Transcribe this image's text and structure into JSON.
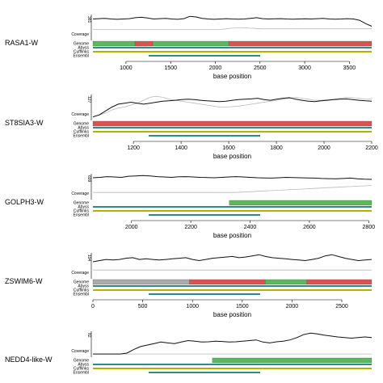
{
  "chart_data": [
    {
      "type": "line",
      "gene": "RASA1-W",
      "ymax_label": "381",
      "ylabel": "Coverage",
      "xlabel": "base position",
      "xlim": [
        630,
        3750
      ],
      "xticks": [
        1000,
        1500,
        2000,
        2500,
        3000,
        3500
      ],
      "coverage": [
        300,
        305,
        310,
        300,
        295,
        300,
        305,
        320,
        325,
        315,
        300,
        305,
        310,
        300,
        295,
        305,
        340,
        330,
        310,
        300,
        295,
        300,
        305,
        300,
        298,
        300,
        310,
        320,
        305,
        300,
        302,
        305,
        300,
        298,
        300,
        302,
        300,
        305,
        310,
        300,
        298,
        300,
        305,
        300,
        280,
        230,
        190
      ],
      "secondary": [
        140,
        140,
        140,
        140,
        140,
        140,
        140,
        140,
        140,
        140,
        140,
        140,
        140,
        140,
        140,
        140,
        140,
        140,
        140,
        140,
        140,
        140,
        150,
        160,
        170,
        165,
        160,
        155,
        150,
        150,
        150,
        150,
        150,
        150,
        150,
        150,
        150,
        150,
        150,
        150,
        150,
        150,
        150,
        150,
        150,
        150,
        150
      ],
      "tracks": [
        {
          "label": "Genome",
          "type": "green",
          "start": 630,
          "end": 1100
        },
        {
          "label": "Genome",
          "type": "red",
          "start": 1100,
          "end": 1300
        },
        {
          "label": "Genome",
          "type": "green",
          "start": 1300,
          "end": 2150
        },
        {
          "label": "Genome",
          "type": "red",
          "start": 2150,
          "end": 3750
        }
      ],
      "annotation_rows": [
        "Genome",
        "Abyss",
        "Cufflinks",
        "Ensembl"
      ],
      "colors": {
        "green": "#5cb85c",
        "red": "#d9534f",
        "teal": "#2e8b8b",
        "olive": "#b8b000",
        "gray": "#aaaaaa"
      }
    },
    {
      "type": "line",
      "gene": "ST8SIA3-W",
      "ymax_label": "127",
      "ylabel": "Coverage",
      "xlabel": "base position",
      "xlim": [
        1030,
        2200
      ],
      "xticks": [
        1200,
        1400,
        1600,
        1800,
        2000,
        2200
      ],
      "coverage": [
        10,
        20,
        40,
        60,
        75,
        80,
        85,
        80,
        75,
        80,
        85,
        90,
        92,
        95,
        98,
        100,
        98,
        95,
        92,
        90,
        88,
        90,
        95,
        98,
        100,
        102,
        105,
        98,
        95,
        100,
        105,
        108,
        100,
        95,
        90,
        88,
        92,
        95,
        98,
        100,
        102,
        98,
        95,
        92,
        90
      ],
      "secondary": [
        10,
        20,
        30,
        45,
        55,
        60,
        70,
        80,
        95,
        110,
        115,
        110,
        100,
        95,
        90,
        85,
        80,
        75,
        70,
        65,
        60,
        60,
        62,
        65,
        70,
        75,
        80,
        85,
        90,
        95,
        100,
        105,
        110,
        105,
        100,
        95,
        95,
        98,
        100,
        105,
        110,
        108,
        105,
        100,
        100
      ],
      "tracks": [
        {
          "label": "Genome",
          "type": "red",
          "start": 1030,
          "end": 2200
        }
      ],
      "annotation_rows": [
        "Genome",
        "Abyss",
        "Cufflinks",
        "Ensembl"
      ],
      "colors": {
        "green": "#5cb85c",
        "red": "#d9534f",
        "teal": "#2e8b8b",
        "olive": "#b8b000",
        "gray": "#aaaaaa"
      }
    },
    {
      "type": "line",
      "gene": "GOLPH3-W",
      "ymax_label": "699",
      "ylabel": "Coverage",
      "xlabel": "base position",
      "xlim": [
        1870,
        2810
      ],
      "xticks": [
        2000,
        2200,
        2400,
        2600,
        2800
      ],
      "coverage": [
        550,
        560,
        580,
        570,
        560,
        590,
        600,
        610,
        600,
        580,
        570,
        560,
        575,
        580,
        570,
        560,
        555,
        550,
        560,
        570,
        580,
        570,
        560,
        550,
        545,
        540,
        550,
        560,
        555,
        550,
        545,
        540,
        530,
        525,
        520,
        530,
        540,
        520,
        510,
        505
      ],
      "secondary": [
        150,
        150,
        150,
        150,
        150,
        150,
        150,
        150,
        150,
        150,
        150,
        150,
        150,
        150,
        150,
        150,
        150,
        150,
        150,
        150,
        150,
        160,
        170,
        180,
        190,
        200,
        210,
        220,
        230,
        240,
        250,
        260,
        270,
        280,
        290,
        300,
        310,
        320,
        330,
        335
      ],
      "tracks": [
        {
          "label": "Genome",
          "type": "green",
          "start": 2330,
          "end": 2810
        }
      ],
      "annotation_rows": [
        "Genome",
        "Abyss",
        "Cufflinks",
        "Ensembl"
      ],
      "colors": {
        "green": "#5cb85c",
        "red": "#d9534f",
        "teal": "#2e8b8b",
        "olive": "#b8b000",
        "gray": "#aaaaaa"
      }
    },
    {
      "type": "line",
      "gene": "ZSWIM6-W",
      "ymax_label": "194",
      "ylabel": "Coverage",
      "xlabel": "base position",
      "xlim": [
        0,
        2800
      ],
      "xticks": [
        0,
        500,
        1000,
        1500,
        2000,
        2500
      ],
      "coverage": [
        130,
        140,
        150,
        145,
        150,
        160,
        165,
        150,
        155,
        150,
        145,
        150,
        155,
        160,
        165,
        150,
        140,
        150,
        160,
        165,
        170,
        175,
        165,
        170,
        180,
        190,
        175,
        165,
        160,
        155,
        150,
        145,
        140,
        150,
        160,
        180,
        190,
        175,
        160,
        150,
        140,
        145,
        150
      ],
      "secondary": [
        60,
        60,
        60,
        60,
        60,
        60,
        60,
        60,
        60,
        60,
        60,
        60,
        60,
        60,
        60,
        60,
        60,
        60,
        60,
        60,
        60,
        60,
        60,
        60,
        60,
        60,
        60,
        60,
        60,
        60,
        60,
        60,
        60,
        60,
        60,
        60,
        60,
        60,
        60,
        60,
        60,
        60,
        60
      ],
      "tracks": [
        {
          "label": "Genome",
          "type": "gray",
          "start": 0,
          "end": 970
        },
        {
          "label": "Genome",
          "type": "red",
          "start": 970,
          "end": 1730
        },
        {
          "label": "Genome",
          "type": "green",
          "start": 1730,
          "end": 2150
        },
        {
          "label": "Genome",
          "type": "red",
          "start": 2150,
          "end": 2800
        }
      ],
      "annotation_rows": [
        "Genome",
        "Abyss",
        "Cufflinks",
        "Ensembl"
      ],
      "colors": {
        "green": "#5cb85c",
        "red": "#d9534f",
        "teal": "#2e8b8b",
        "olive": "#b8b000",
        "gray": "#aaaaaa"
      }
    },
    {
      "type": "line",
      "gene": "NEDD4-like-W",
      "ymax_label": "82",
      "ylabel": "Coverage",
      "xlabel": "",
      "xlim": [
        0,
        2800
      ],
      "xticks": [],
      "coverage": [
        5,
        5,
        5,
        5,
        5,
        8,
        20,
        30,
        35,
        40,
        45,
        42,
        40,
        45,
        50,
        48,
        45,
        46,
        48,
        47,
        45,
        46,
        48,
        50,
        52,
        45,
        42,
        46,
        48,
        52,
        60,
        70,
        75,
        72,
        68,
        65,
        62,
        60,
        58,
        60,
        62,
        60
      ],
      "secondary": [
        5,
        5,
        5,
        5,
        5,
        5,
        5,
        5,
        5,
        5,
        5,
        5,
        5,
        5,
        5,
        5,
        5,
        5,
        5,
        5,
        5,
        5,
        5,
        5,
        5,
        5,
        5,
        5,
        5,
        5,
        5,
        5,
        5,
        5,
        5,
        5,
        5,
        5,
        5,
        5,
        5,
        5
      ],
      "tracks": [
        {
          "label": "Genome",
          "type": "green",
          "start": 1200,
          "end": 2800
        }
      ],
      "annotation_rows": [
        "Genome",
        "Abyss",
        "Cufflinks",
        "Ensembl"
      ],
      "colors": {
        "green": "#5cb85c",
        "red": "#d9534f",
        "teal": "#2e8b8b",
        "olive": "#b8b000",
        "gray": "#aaaaaa"
      }
    }
  ]
}
